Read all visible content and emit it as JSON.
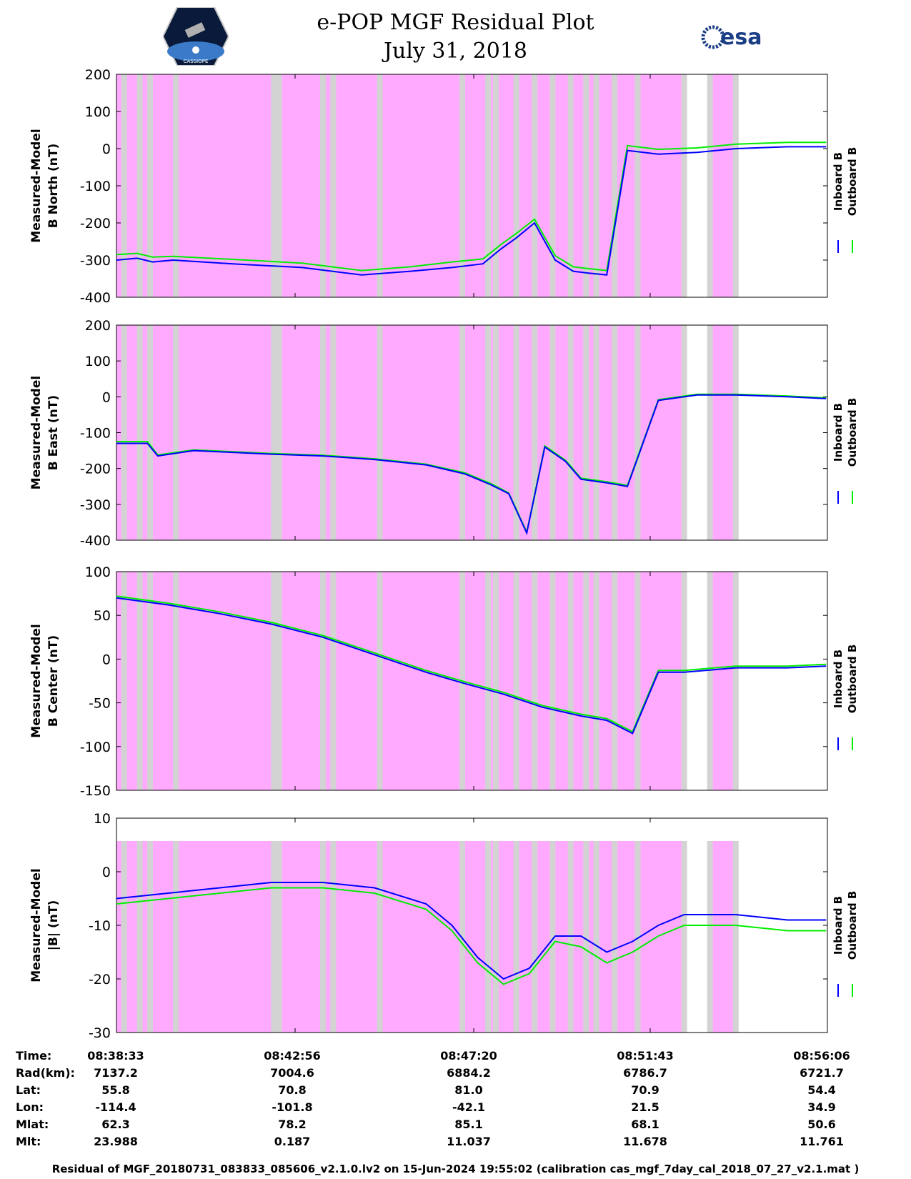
{
  "header": {
    "title_line1": "e-POP MGF Residual Plot",
    "title_line2": "July 31, 2018",
    "logo_left": "CASSIOPE",
    "logo_right": "esa"
  },
  "legend": {
    "inboard": "Inboard B",
    "outboard": "Outboard B"
  },
  "colors": {
    "inboard": "#0000ff",
    "outboard": "#00ee00",
    "sunlit_band": "#ffaaff",
    "gap_band": "#d3d3d3"
  },
  "chart_data": [
    {
      "type": "line",
      "title": "",
      "ylabel_line1": "Measured-Model",
      "ylabel_line2": "B North (nT)",
      "ylim": [
        -400,
        200
      ],
      "yticks": [
        "200",
        "100",
        "0",
        "-100",
        "-200",
        "-300",
        "-400"
      ],
      "x_minutes": [
        0,
        0.8,
        1.4,
        2.2,
        4.5,
        7.2,
        9.5,
        11.4,
        13.0,
        14.2,
        14.9,
        15.5,
        16.2,
        17.0,
        17.7,
        18.3,
        19.0,
        19.8,
        21.0,
        22.5,
        24.0,
        26.0,
        27.5
      ],
      "series": [
        {
          "name": "Inboard B",
          "values": [
            -300,
            -295,
            -305,
            -300,
            -310,
            -320,
            -340,
            -330,
            -320,
            -310,
            -270,
            -240,
            -200,
            -300,
            -330,
            -335,
            -340,
            -5,
            -15,
            -10,
            0,
            5,
            5
          ]
        },
        {
          "name": "Outboard B",
          "values": [
            -285,
            -282,
            -292,
            -290,
            -298,
            -308,
            -328,
            -318,
            -305,
            -297,
            -258,
            -228,
            -190,
            -288,
            -318,
            -323,
            -328,
            8,
            -2,
            2,
            12,
            17,
            17
          ]
        }
      ]
    },
    {
      "type": "line",
      "title": "",
      "ylabel_line1": "Measured-Model",
      "ylabel_line2": "B East (nT)",
      "ylim": [
        -400,
        200
      ],
      "yticks": [
        "200",
        "100",
        "0",
        "-100",
        "-200",
        "-300",
        "-400"
      ],
      "x_minutes": [
        0,
        1.2,
        1.6,
        3.0,
        6.0,
        8.0,
        10.0,
        12.0,
        13.5,
        14.5,
        15.2,
        15.9,
        16.6,
        17.4,
        18.0,
        19.0,
        19.8,
        21.0,
        22.5,
        24.0,
        26.0,
        27.5
      ],
      "series": [
        {
          "name": "Inboard B",
          "values": [
            -130,
            -130,
            -165,
            -150,
            -160,
            -165,
            -175,
            -190,
            -215,
            -245,
            -270,
            -380,
            -140,
            -180,
            -230,
            -240,
            -250,
            -10,
            5,
            5,
            0,
            -5
          ]
        },
        {
          "name": "Outboard B",
          "values": [
            -125,
            -125,
            -162,
            -148,
            -158,
            -163,
            -173,
            -188,
            -212,
            -242,
            -268,
            -377,
            -137,
            -177,
            -227,
            -237,
            -247,
            -8,
            7,
            7,
            2,
            -3
          ]
        }
      ]
    },
    {
      "type": "line",
      "title": "",
      "ylabel_line1": "Measured-Model",
      "ylabel_line2": "B Center (nT)",
      "ylim": [
        -150,
        100
      ],
      "yticks": [
        "100",
        "50",
        "0",
        "-50",
        "-100",
        "-150"
      ],
      "x_minutes": [
        0,
        2.0,
        4.0,
        6.0,
        8.0,
        10.0,
        12.0,
        13.5,
        15.0,
        16.5,
        18.0,
        19.0,
        20.0,
        21.0,
        22.0,
        24.0,
        26.0,
        27.5
      ],
      "series": [
        {
          "name": "Inboard B",
          "values": [
            70,
            62,
            52,
            40,
            25,
            5,
            -15,
            -28,
            -40,
            -55,
            -65,
            -70,
            -85,
            -15,
            -15,
            -10,
            -10,
            -8
          ]
        },
        {
          "name": "Outboard B",
          "values": [
            72,
            64,
            54,
            42,
            27,
            7,
            -13,
            -26,
            -38,
            -53,
            -63,
            -68,
            -83,
            -13,
            -13,
            -8,
            -8,
            -6
          ]
        }
      ]
    },
    {
      "type": "line",
      "title": "",
      "ylabel_line1": "Measured-Model",
      "ylabel_line2": "|B| (nT)",
      "ylim": [
        -30,
        10
      ],
      "yticks": [
        "10",
        "0",
        "-10",
        "-20",
        "-30"
      ],
      "x_minutes": [
        0,
        2.0,
        4.0,
        6.0,
        8.0,
        10.0,
        12.0,
        13.0,
        14.0,
        15.0,
        16.0,
        17.0,
        18.0,
        19.0,
        20.0,
        21.0,
        22.0,
        24.0,
        26.0,
        27.5
      ],
      "series": [
        {
          "name": "Inboard B",
          "values": [
            -5,
            -4,
            -3,
            -2,
            -2,
            -3,
            -6,
            -10,
            -16,
            -20,
            -18,
            -12,
            -12,
            -15,
            -13,
            -10,
            -8,
            -8,
            -9,
            -9
          ]
        },
        {
          "name": "Outboard B",
          "values": [
            -6,
            -5,
            -4,
            -3,
            -3,
            -4,
            -7,
            -11,
            -17,
            -21,
            -19,
            -13,
            -14,
            -17,
            -15,
            -12,
            -10,
            -10,
            -11,
            -11
          ]
        }
      ]
    }
  ],
  "info": {
    "row_labels": [
      "Time:",
      "Rad(km):",
      "Lat:",
      "Lon:",
      "Mlat:",
      "Mlt:"
    ],
    "columns": [
      [
        "08:38:33",
        "7137.2",
        "55.8",
        "-114.4",
        "62.3",
        "23.988"
      ],
      [
        "08:42:56",
        "7004.6",
        "70.8",
        "-101.8",
        "78.2",
        "0.187"
      ],
      [
        "08:47:20",
        "6884.2",
        "81.0",
        "-42.1",
        "85.1",
        "11.037"
      ],
      [
        "08:51:43",
        "6786.7",
        "70.9",
        "21.5",
        "68.1",
        "11.678"
      ],
      [
        "08:56:06",
        "6721.7",
        "54.4",
        "34.9",
        "50.6",
        "11.761"
      ]
    ]
  },
  "footer": "Residual of MGF_20180731_083833_085606_v2.1.0.lv2 on 15-Jun-2024 19:55:02 (calibration cas_mgf_7day_cal_2018_07_27_v2.1.mat )"
}
